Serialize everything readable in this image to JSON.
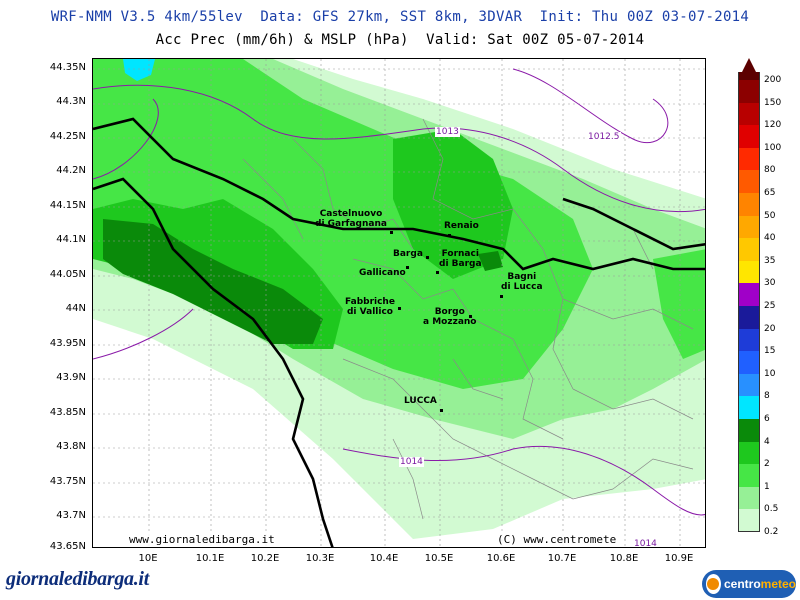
{
  "header": {
    "line1": "WRF-NMM V3.5 4km/55lev  Data: GFS 27km, SST 8km, 3DVAR  Init: Thu 00Z 03-07-2014",
    "line2": "Acc Prec (mm/6h) & MSLP (hPa)  Valid: Sat 00Z 05-07-2014"
  },
  "axes": {
    "lat_labels": [
      "44.35N",
      "44.3N",
      "44.25N",
      "44.2N",
      "44.15N",
      "44.1N",
      "44.05N",
      "44N",
      "43.95N",
      "43.9N",
      "43.85N",
      "43.8N",
      "43.75N",
      "43.7N",
      "43.65N"
    ],
    "lon_labels": [
      "10E",
      "10.1E",
      "10.2E",
      "10.3E",
      "10.4E",
      "10.5E",
      "10.6E",
      "10.7E",
      "10.8E",
      "10.9E"
    ]
  },
  "towns": [
    {
      "name": "Castelnuovo\ndi Garfagnana"
    },
    {
      "name": "Renaio"
    },
    {
      "name": "Barga"
    },
    {
      "name": "Fornaci\ndi Barga"
    },
    {
      "name": "Gallicano"
    },
    {
      "name": "Bagni\ndi Lucca"
    },
    {
      "name": "Fabbriche\ndi Vallico"
    },
    {
      "name": "Borgo\na Mozzano"
    },
    {
      "name": "LUCCA"
    }
  ],
  "isobars": [
    "1013",
    "1012.5",
    "1014",
    "1014"
  ],
  "credits": {
    "left": "www.giornaledibarga.it",
    "right": "(C) www.centromete"
  },
  "legend": {
    "items": [
      {
        "label": "200",
        "color": "#5c0000"
      },
      {
        "label": "150",
        "color": "#8c0000"
      },
      {
        "label": "120",
        "color": "#b80000"
      },
      {
        "label": "100",
        "color": "#e00000"
      },
      {
        "label": "80",
        "color": "#ff2a00"
      },
      {
        "label": "65",
        "color": "#ff5a00"
      },
      {
        "label": "50",
        "color": "#ff8400"
      },
      {
        "label": "40",
        "color": "#ffa800"
      },
      {
        "label": "35",
        "color": "#ffc800"
      },
      {
        "label": "30",
        "color": "#ffe600"
      },
      {
        "label": "25",
        "color": "#a000c8"
      },
      {
        "label": "20",
        "color": "#1a1a9a"
      },
      {
        "label": "15",
        "color": "#1e3cd8"
      },
      {
        "label": "10",
        "color": "#2060ff"
      },
      {
        "label": "8",
        "color": "#2890ff"
      },
      {
        "label": "6",
        "color": "#00e6ff"
      },
      {
        "label": "4",
        "color": "#0a8a0a"
      },
      {
        "label": "2",
        "color": "#1ec81e"
      },
      {
        "label": "1",
        "color": "#46e646"
      },
      {
        "label": "0.5",
        "color": "#96f096"
      },
      {
        "label": "0.2",
        "color": "#d2fad2"
      }
    ]
  },
  "footer": {
    "logo_text": "giornaledibarga.it",
    "brand_prefix": "centro",
    "brand_suffix": "meteo"
  }
}
